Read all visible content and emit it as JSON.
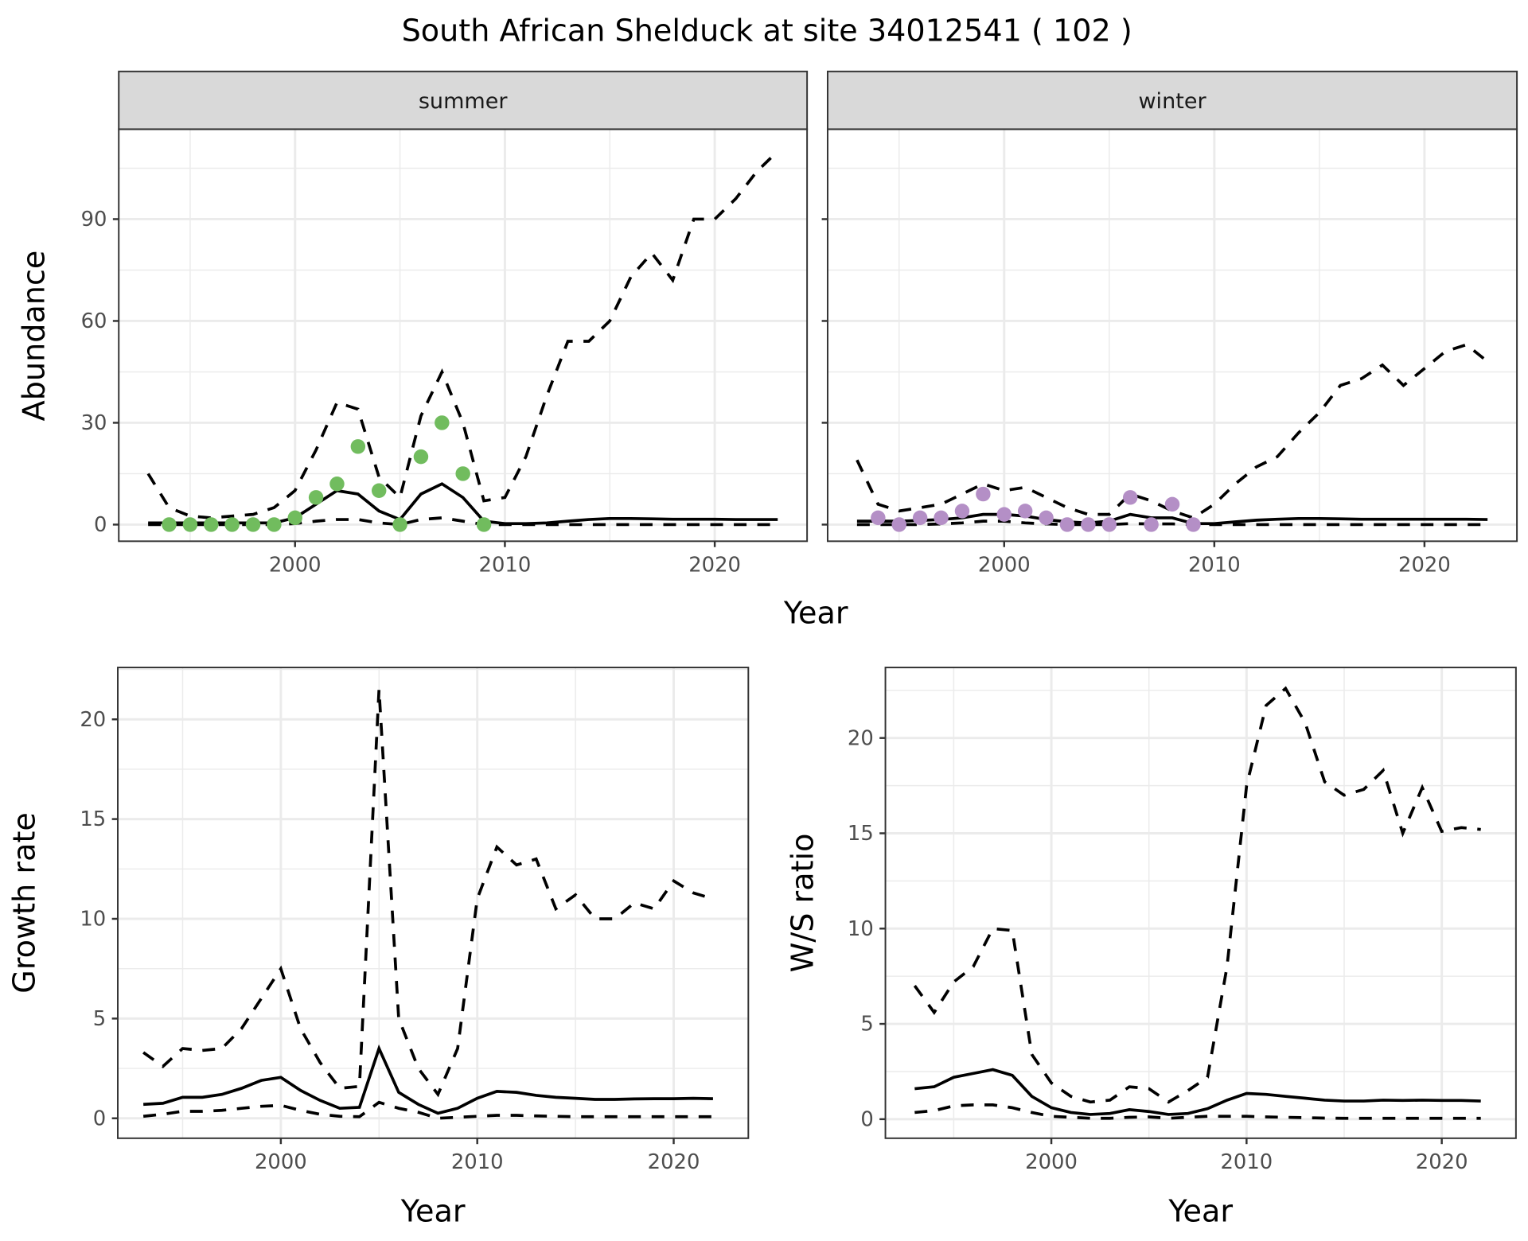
{
  "title": "South African Shelduck at site 34012541 ( 102 )",
  "colors": {
    "summer_points": "#71bc5e",
    "winter_points": "#b48fc6",
    "strip_bg": "#d9d9d9",
    "grid": "#ebebeb"
  },
  "chart_data": [
    {
      "type": "line+scatter",
      "facet": "summer",
      "xlabel": "Year",
      "ylabel": "Abundance",
      "xlim": [
        1991.6,
        2024.4
      ],
      "ylim": [
        -4.9,
        116.5
      ],
      "xticks": [
        2000,
        2010,
        2020
      ],
      "yticks": [
        0,
        30,
        60,
        90
      ],
      "grid": true,
      "years": [
        1993,
        1994,
        1995,
        1996,
        1997,
        1998,
        1999,
        2000,
        2001,
        2002,
        2003,
        2004,
        2005,
        2006,
        2007,
        2008,
        2009,
        2010,
        2011,
        2012,
        2013,
        2014,
        2015,
        2016,
        2017,
        2018,
        2019,
        2020,
        2021,
        2022,
        2023
      ],
      "mean": [
        0.5,
        0.5,
        0.5,
        0.5,
        0.5,
        0.5,
        0.5,
        2,
        6,
        10,
        9,
        4,
        1.5,
        9,
        12,
        8,
        1,
        0.3,
        0.3,
        0.5,
        1,
        1.5,
        1.8,
        1.8,
        1.7,
        1.6,
        1.6,
        1.6,
        1.5,
        1.5,
        1.5
      ],
      "upper": [
        15,
        5,
        2.5,
        2,
        2.5,
        3,
        5,
        10,
        22,
        36,
        34,
        14,
        8,
        32,
        45,
        30,
        7,
        8,
        20,
        38,
        54,
        54,
        60,
        73,
        80,
        72,
        90,
        90,
        96,
        104,
        110
      ],
      "lower": [
        0,
        0,
        0,
        0,
        0,
        0,
        0,
        0.3,
        1,
        1.5,
        1.5,
        0.5,
        0,
        1.5,
        2,
        1,
        0,
        0,
        0,
        0,
        0,
        0,
        0,
        0,
        0,
        0,
        0,
        0,
        0,
        0,
        0
      ],
      "points": {
        "x": [
          1994,
          1995,
          1996,
          1997,
          1998,
          1999,
          2000,
          2001,
          2002,
          2003,
          2004,
          2005,
          2006,
          2007,
          2008,
          2009
        ],
        "y": [
          0,
          0,
          0,
          0,
          0,
          0,
          2,
          8,
          12,
          23,
          10,
          0,
          20,
          30,
          15,
          0
        ]
      }
    },
    {
      "type": "line+scatter",
      "facet": "winter",
      "xlabel": "Year",
      "ylabel": "Abundance",
      "xlim": [
        1991.6,
        2024.4
      ],
      "ylim": [
        -4.9,
        116.5
      ],
      "xticks": [
        2000,
        2010,
        2020
      ],
      "yticks": [
        0,
        30,
        60,
        90
      ],
      "grid": true,
      "years": [
        1993,
        1994,
        1995,
        1996,
        1997,
        1998,
        1999,
        2000,
        2001,
        2002,
        2003,
        2004,
        2005,
        2006,
        2007,
        2008,
        2009,
        2010,
        2011,
        2012,
        2013,
        2014,
        2015,
        2016,
        2017,
        2018,
        2019,
        2020,
        2021,
        2022,
        2023
      ],
      "mean": [
        1,
        1,
        1,
        1.2,
        1.5,
        2,
        3,
        3,
        2.5,
        1.5,
        0.8,
        0.5,
        1,
        3,
        2,
        2,
        0.3,
        0.3,
        0.8,
        1.3,
        1.6,
        1.8,
        1.8,
        1.7,
        1.6,
        1.6,
        1.6,
        1.6,
        1.6,
        1.6,
        1.5
      ],
      "upper": [
        19,
        6,
        4,
        5,
        6,
        9,
        12,
        10,
        11,
        8,
        5,
        3,
        3,
        9,
        7,
        4,
        2,
        6,
        12,
        17,
        20,
        27,
        33,
        41,
        43,
        47,
        41,
        46,
        51,
        53,
        48
      ],
      "lower": [
        0,
        0,
        0,
        0,
        0.2,
        0.5,
        1,
        1,
        0.5,
        0.2,
        0,
        0,
        0,
        0.3,
        0.2,
        0.2,
        0,
        0,
        0,
        0,
        0,
        0,
        0,
        0,
        0,
        0,
        0,
        0,
        0,
        0,
        0
      ],
      "points": {
        "x": [
          1994,
          1995,
          1996,
          1997,
          1998,
          1999,
          2000,
          2001,
          2002,
          2003,
          2004,
          2005,
          2006,
          2007,
          2008,
          2009
        ],
        "y": [
          2,
          0,
          2,
          2,
          4,
          9,
          3,
          4,
          2,
          0,
          0,
          0,
          8,
          0,
          6,
          0
        ]
      }
    },
    {
      "type": "line",
      "xlabel": "Year",
      "ylabel": "Growth rate",
      "xlim": [
        1991.7,
        2023.8
      ],
      "ylim": [
        -1,
        22.6
      ],
      "xticks": [
        2000,
        2010,
        2020
      ],
      "yticks": [
        0,
        5,
        10,
        15,
        20
      ],
      "grid": true,
      "years": [
        1993,
        1994,
        1995,
        1996,
        1997,
        1998,
        1999,
        2000,
        2001,
        2002,
        2003,
        2004,
        2005,
        2006,
        2007,
        2008,
        2009,
        2010,
        2011,
        2012,
        2013,
        2014,
        2015,
        2016,
        2017,
        2018,
        2019,
        2020,
        2021,
        2022
      ],
      "mean": [
        0.7,
        0.75,
        1.05,
        1.05,
        1.2,
        1.5,
        1.9,
        2.05,
        1.4,
        0.9,
        0.5,
        0.55,
        3.5,
        1.3,
        0.7,
        0.25,
        0.5,
        1.0,
        1.35,
        1.3,
        1.15,
        1.05,
        1.0,
        0.95,
        0.95,
        0.97,
        0.98,
        0.98,
        1.0,
        0.98
      ],
      "upper": [
        3.3,
        2.6,
        3.5,
        3.4,
        3.5,
        4.5,
        6.0,
        7.5,
        4.5,
        2.8,
        1.5,
        1.6,
        21.5,
        5,
        2.5,
        1.2,
        3.5,
        11,
        13.6,
        12.7,
        13,
        10.5,
        11.2,
        10,
        10,
        10.8,
        10.5,
        11.9,
        11.3,
        11
      ],
      "lower": [
        0.1,
        0.2,
        0.35,
        0.35,
        0.4,
        0.5,
        0.6,
        0.65,
        0.4,
        0.2,
        0.1,
        0.08,
        0.8,
        0.5,
        0.3,
        0,
        0.05,
        0.1,
        0.15,
        0.15,
        0.12,
        0.1,
        0.08,
        0.08,
        0.08,
        0.08,
        0.08,
        0.08,
        0.08,
        0.08
      ]
    },
    {
      "type": "line",
      "xlabel": "Year",
      "ylabel": "W/S ratio",
      "xlim": [
        1991.5,
        2023.8
      ],
      "ylim": [
        -1,
        23.7
      ],
      "xticks": [
        2000,
        2010,
        2020
      ],
      "yticks": [
        0,
        5,
        10,
        15,
        20
      ],
      "grid": true,
      "years": [
        1993,
        1994,
        1995,
        1996,
        1997,
        1998,
        1999,
        2000,
        2001,
        2002,
        2003,
        2004,
        2005,
        2006,
        2007,
        2008,
        2009,
        2010,
        2011,
        2012,
        2013,
        2014,
        2015,
        2016,
        2017,
        2018,
        2019,
        2020,
        2021,
        2022
      ],
      "mean": [
        1.6,
        1.7,
        2.2,
        2.4,
        2.6,
        2.3,
        1.2,
        0.6,
        0.35,
        0.25,
        0.3,
        0.5,
        0.4,
        0.25,
        0.3,
        0.55,
        1.0,
        1.35,
        1.3,
        1.2,
        1.1,
        1.0,
        0.95,
        0.95,
        1.0,
        0.98,
        1.0,
        0.98,
        0.98,
        0.95
      ],
      "upper": [
        7,
        5.6,
        7.2,
        8,
        10,
        9.9,
        3.4,
        1.9,
        1.2,
        0.9,
        1.0,
        1.7,
        1.6,
        0.9,
        1.5,
        2.2,
        8,
        17.5,
        21.7,
        22.6,
        20.8,
        17.7,
        17,
        17.3,
        18.3,
        15,
        17.4,
        15.1,
        15.3,
        15.2
      ],
      "lower": [
        0.35,
        0.45,
        0.7,
        0.75,
        0.75,
        0.6,
        0.35,
        0.15,
        0.1,
        0.05,
        0.05,
        0.1,
        0.12,
        0.05,
        0.1,
        0.15,
        0.15,
        0.15,
        0.12,
        0.1,
        0.08,
        0.06,
        0.05,
        0.05,
        0.05,
        0.05,
        0.05,
        0.05,
        0.05,
        0.05
      ]
    }
  ]
}
